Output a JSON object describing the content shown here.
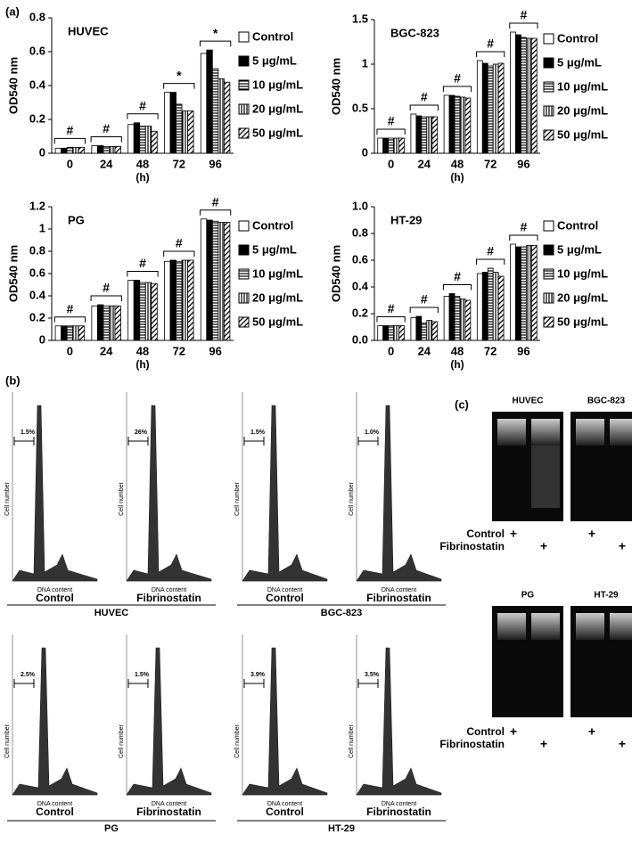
{
  "panel_a": "(a)",
  "chart_data": [
    {
      "type": "bar",
      "title": "HUVEC",
      "x_label": "(h)",
      "y_label": "OD540 nm",
      "categories": [
        "0",
        "24",
        "48",
        "72",
        "96"
      ],
      "group_labels": [
        "#",
        "#",
        "#",
        "*",
        "*"
      ],
      "ylim": [
        0,
        0.8
      ],
      "yticks": [
        0,
        0.2,
        0.4,
        0.6,
        0.8
      ],
      "series": [
        {
          "name": "Control",
          "color": "#000000",
          "pattern": "none",
          "values": [
            0.03,
            0.045,
            0.17,
            0.36,
            0.59
          ]
        },
        {
          "name": "5 μg/mL",
          "color": "#000000",
          "pattern": "solid",
          "values": [
            0.03,
            0.045,
            0.18,
            0.36,
            0.61
          ]
        },
        {
          "name": "10 μg/mL",
          "color": "#000000",
          "pattern": "horizontal",
          "values": [
            0.035,
            0.04,
            0.16,
            0.29,
            0.5
          ]
        },
        {
          "name": "20 μg/mL",
          "color": "#000000",
          "pattern": "vertical",
          "values": [
            0.035,
            0.04,
            0.16,
            0.25,
            0.44
          ]
        },
        {
          "name": "50 μg/mL",
          "color": "#000000",
          "pattern": "diagonal",
          "values": [
            0.035,
            0.04,
            0.13,
            0.25,
            0.42
          ]
        }
      ]
    },
    {
      "type": "bar",
      "title": "BGC-823",
      "x_label": "(h)",
      "y_label": "OD540 nm",
      "categories": [
        "0",
        "24",
        "48",
        "72",
        "96"
      ],
      "group_labels": [
        "#",
        "#",
        "#",
        "#",
        "#"
      ],
      "ylim": [
        0,
        1.5
      ],
      "yticks": [
        0,
        0.5,
        1,
        1.5
      ],
      "series": [
        {
          "name": "Control",
          "color": "#000000",
          "pattern": "none",
          "values": [
            0.17,
            0.44,
            0.65,
            1.04,
            1.36
          ]
        },
        {
          "name": "5 μg/mL",
          "color": "#000000",
          "pattern": "solid",
          "values": [
            0.17,
            0.42,
            0.65,
            1.01,
            1.33
          ]
        },
        {
          "name": "10 μg/mL",
          "color": "#000000",
          "pattern": "horizontal",
          "values": [
            0.17,
            0.41,
            0.64,
            0.98,
            1.3
          ]
        },
        {
          "name": "20 μg/mL",
          "color": "#000000",
          "pattern": "vertical",
          "values": [
            0.17,
            0.41,
            0.63,
            1.0,
            1.29
          ]
        },
        {
          "name": "50 μg/mL",
          "color": "#000000",
          "pattern": "diagonal",
          "values": [
            0.17,
            0.41,
            0.62,
            1.01,
            1.29
          ]
        }
      ]
    },
    {
      "type": "bar",
      "title": "PG",
      "x_label": "(h)",
      "y_label": "OD540 nm",
      "categories": [
        "0",
        "24",
        "48",
        "72",
        "96"
      ],
      "group_labels": [
        "#",
        "#",
        "#",
        "#",
        "#"
      ],
      "ylim": [
        0,
        1.2
      ],
      "yticks": [
        0,
        0.2,
        0.4,
        0.6,
        0.8,
        1,
        1.2
      ],
      "series": [
        {
          "name": "Control",
          "color": "#000000",
          "pattern": "none",
          "values": [
            0.13,
            0.31,
            0.54,
            0.71,
            1.09
          ]
        },
        {
          "name": "5 μg/mL",
          "color": "#000000",
          "pattern": "solid",
          "values": [
            0.13,
            0.32,
            0.54,
            0.72,
            1.08
          ]
        },
        {
          "name": "10 μg/mL",
          "color": "#000000",
          "pattern": "horizontal",
          "values": [
            0.13,
            0.31,
            0.52,
            0.71,
            1.07
          ]
        },
        {
          "name": "20 μg/mL",
          "color": "#000000",
          "pattern": "vertical",
          "values": [
            0.13,
            0.31,
            0.52,
            0.72,
            1.06
          ]
        },
        {
          "name": "50 μg/mL",
          "color": "#000000",
          "pattern": "diagonal",
          "values": [
            0.13,
            0.31,
            0.51,
            0.72,
            1.06
          ]
        }
      ]
    },
    {
      "type": "bar",
      "title": "HT-29",
      "x_label": "(h)",
      "y_label": "OD540 nm",
      "categories": [
        "0",
        "24",
        "48",
        "72",
        "96"
      ],
      "group_labels": [
        "#",
        "#",
        "#",
        "#",
        "#"
      ],
      "ylim": [
        0,
        1.0
      ],
      "yticks": [
        {
          "value": 0,
          "label": "0.0"
        },
        0.2,
        0.4,
        0.6,
        0.8,
        {
          "value": 1,
          "label": "1.0"
        }
      ],
      "series": [
        {
          "name": "Control",
          "color": "#000000",
          "pattern": "none",
          "values": [
            0.11,
            0.17,
            0.33,
            0.5,
            0.72
          ]
        },
        {
          "name": "5 μg/mL",
          "color": "#000000",
          "pattern": "solid",
          "values": [
            0.11,
            0.18,
            0.35,
            0.51,
            0.7
          ]
        },
        {
          "name": "10 μg/mL",
          "color": "#000000",
          "pattern": "horizontal",
          "values": [
            0.11,
            0.13,
            0.33,
            0.54,
            0.7
          ]
        },
        {
          "name": "20 μg/mL",
          "color": "#000000",
          "pattern": "vertical",
          "values": [
            0.11,
            0.15,
            0.31,
            0.51,
            0.71
          ]
        },
        {
          "name": "50 μg/mL",
          "color": "#000000",
          "pattern": "diagonal",
          "values": [
            0.11,
            0.14,
            0.3,
            0.48,
            0.71
          ]
        }
      ]
    }
  ],
  "flow_cytometry": {
    "label": "(b)",
    "y_axis": "Cell number",
    "x_axis": "DNA content",
    "groups": [
      {
        "name": "HUVEC",
        "panels": [
          {
            "condition": "Control",
            "percent": "1.5%"
          },
          {
            "condition": "Fibrinostatin",
            "percent": "26%"
          }
        ]
      },
      {
        "name": "BGC-823",
        "panels": [
          {
            "condition": "Control",
            "percent": "1.5%"
          },
          {
            "condition": "Fibrinostatin",
            "percent": "1.0%"
          }
        ]
      },
      {
        "name": "PG",
        "panels": [
          {
            "condition": "Control",
            "percent": "2.5%"
          },
          {
            "condition": "Fibrinostatin",
            "percent": "1.5%"
          }
        ]
      },
      {
        "name": "HT-29",
        "panels": [
          {
            "condition": "Control",
            "percent": "3.9%"
          },
          {
            "condition": "Fibrinostatin",
            "percent": "3.5%"
          }
        ]
      }
    ]
  },
  "gel": {
    "label": "(c)",
    "rows": [
      {
        "lanes": [
          "HUVEC",
          "BGC-823"
        ]
      },
      {
        "lanes": [
          "PG",
          "HT-29"
        ]
      }
    ],
    "row_labels": [
      "Control",
      "Fibrinostatin"
    ],
    "mark": "+"
  }
}
